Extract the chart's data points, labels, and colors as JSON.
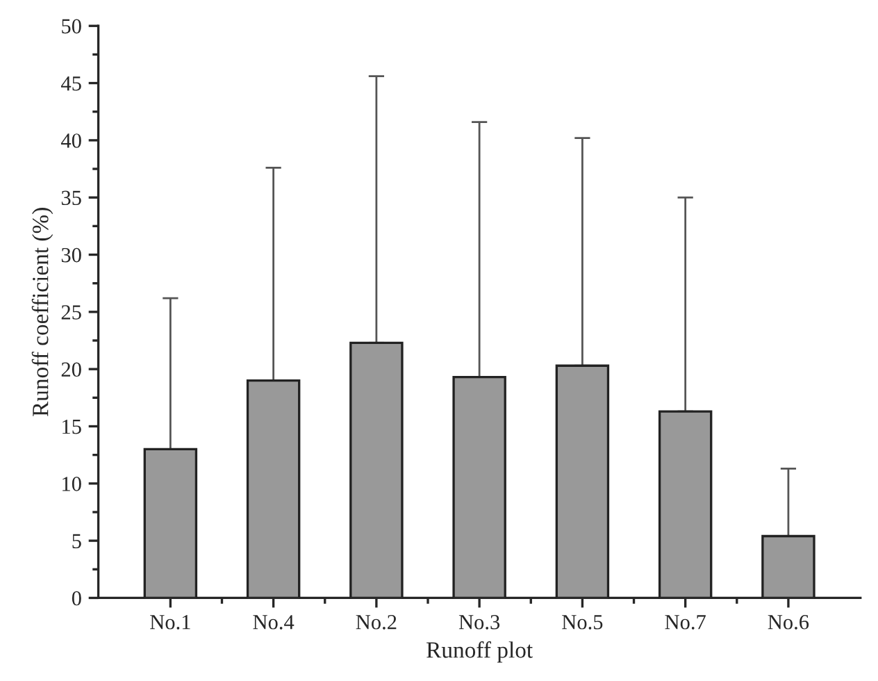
{
  "chart_data": {
    "type": "bar",
    "xlabel": "Runoff plot",
    "ylabel": "Runoff coefficient (%)",
    "categories": [
      "No.1",
      "No.4",
      "No.2",
      "No.3",
      "No.5",
      "No.7",
      "No.6"
    ],
    "values": [
      13.0,
      19.0,
      22.3,
      19.3,
      20.3,
      16.3,
      5.4
    ],
    "errors": [
      [
        13.0,
        26.2
      ],
      [
        19.0,
        37.6
      ],
      [
        22.3,
        45.6
      ],
      [
        19.3,
        41.6
      ],
      [
        20.3,
        40.2
      ],
      [
        16.3,
        35.0
      ],
      [
        5.4,
        11.3
      ]
    ],
    "color": "#999999",
    "ylim": [
      0,
      50
    ],
    "yticks": [
      0,
      5,
      10,
      15,
      20,
      25,
      30,
      35,
      40,
      45,
      50
    ],
    "grid": false
  }
}
